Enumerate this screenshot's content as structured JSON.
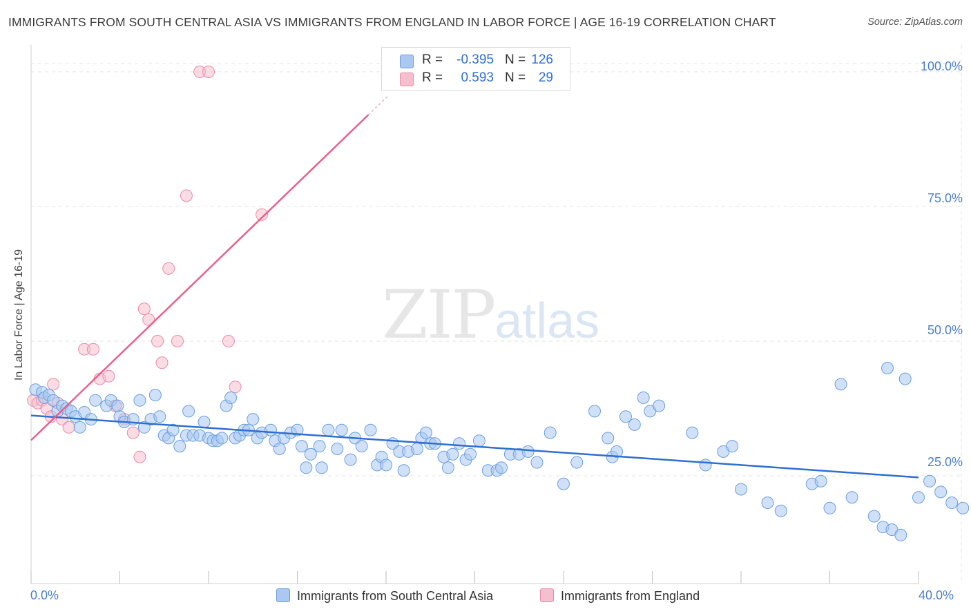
{
  "header": {
    "title": "IMMIGRANTS FROM SOUTH CENTRAL ASIA VS IMMIGRANTS FROM ENGLAND IN LABOR FORCE | AGE 16-19 CORRELATION CHART",
    "source": "Source: ZipAtlas.com"
  },
  "watermark": {
    "zip": "ZIP",
    "atlas": "atlas"
  },
  "legend": {
    "rows": [
      {
        "r_label": "R =",
        "r_value": "-0.395",
        "n_label": "N =",
        "n_value": "126"
      },
      {
        "r_label": "R =",
        "r_value": "0.593",
        "n_label": "N =",
        "n_value": "29"
      }
    ]
  },
  "colors": {
    "blue_fill": "#aac8f0",
    "blue_stroke": "#6a9ede",
    "blue_line": "#2f6fd0",
    "pink_fill": "#f6bfd0",
    "pink_stroke": "#e98aa6",
    "pink_line": "#e8608a",
    "grid": "#e3e3e3",
    "axis_text": "#4a7ec9"
  },
  "chart_data": {
    "type": "scatter",
    "title": "IMMIGRANTS FROM SOUTH CENTRAL ASIA VS IMMIGRANTS FROM ENGLAND IN LABOR FORCE | AGE 16-19 CORRELATION CHART",
    "xlabel": "",
    "ylabel": "In Labor Force | Age 16-19",
    "xlim": [
      0,
      40
    ],
    "ylim": [
      5,
      105
    ],
    "x_tick_labels": [
      "0.0%",
      "40.0%"
    ],
    "y_ticks": [
      25,
      50,
      75,
      100
    ],
    "y_tick_labels": [
      "25.0%",
      "50.0%",
      "75.0%",
      "100.0%"
    ],
    "grid": true,
    "legend_position": "top-center",
    "series": [
      {
        "name": "Immigrants from South Central Asia",
        "r": -0.395,
        "n": 126,
        "trend": {
          "x": [
            0,
            40
          ],
          "y": [
            36.2,
            24.7
          ]
        },
        "points": [
          [
            0.2,
            41.0
          ],
          [
            0.5,
            40.5
          ],
          [
            0.6,
            39.5
          ],
          [
            0.8,
            40.0
          ],
          [
            1.0,
            39.0
          ],
          [
            1.2,
            37.0
          ],
          [
            1.4,
            38.0
          ],
          [
            1.6,
            37.5
          ],
          [
            1.8,
            37.0
          ],
          [
            2.0,
            36.0
          ],
          [
            2.2,
            34.0
          ],
          [
            2.4,
            36.8
          ],
          [
            2.7,
            35.5
          ],
          [
            2.9,
            39.0
          ],
          [
            3.4,
            38.0
          ],
          [
            3.6,
            39.0
          ],
          [
            3.9,
            38.0
          ],
          [
            4.0,
            36.0
          ],
          [
            4.2,
            35.0
          ],
          [
            4.6,
            35.5
          ],
          [
            4.9,
            39.0
          ],
          [
            5.1,
            34.0
          ],
          [
            5.4,
            35.5
          ],
          [
            5.6,
            40.0
          ],
          [
            5.8,
            36.0
          ],
          [
            6.0,
            32.5
          ],
          [
            6.2,
            32.0
          ],
          [
            6.4,
            33.5
          ],
          [
            6.7,
            30.5
          ],
          [
            7.0,
            32.5
          ],
          [
            7.1,
            37.0
          ],
          [
            7.3,
            32.5
          ],
          [
            7.6,
            32.5
          ],
          [
            7.8,
            35.0
          ],
          [
            8.0,
            32.0
          ],
          [
            8.2,
            31.5
          ],
          [
            8.4,
            31.5
          ],
          [
            8.6,
            32.0
          ],
          [
            8.8,
            38.0
          ],
          [
            9.0,
            39.5
          ],
          [
            9.2,
            32.0
          ],
          [
            9.4,
            32.5
          ],
          [
            9.6,
            33.5
          ],
          [
            9.8,
            33.5
          ],
          [
            10.0,
            35.5
          ],
          [
            10.2,
            32.0
          ],
          [
            10.4,
            33.0
          ],
          [
            10.8,
            33.5
          ],
          [
            11.0,
            31.5
          ],
          [
            11.2,
            30.0
          ],
          [
            11.4,
            32.0
          ],
          [
            11.7,
            33.0
          ],
          [
            12.0,
            33.5
          ],
          [
            12.2,
            30.5
          ],
          [
            12.4,
            26.5
          ],
          [
            12.6,
            29.0
          ],
          [
            13.0,
            30.5
          ],
          [
            13.1,
            26.5
          ],
          [
            13.4,
            33.5
          ],
          [
            13.8,
            30.0
          ],
          [
            14.0,
            33.5
          ],
          [
            14.4,
            28.0
          ],
          [
            14.6,
            32.0
          ],
          [
            14.9,
            30.5
          ],
          [
            15.3,
            33.5
          ],
          [
            15.6,
            27.0
          ],
          [
            15.8,
            28.5
          ],
          [
            16.0,
            27.0
          ],
          [
            16.3,
            31.0
          ],
          [
            16.6,
            29.5
          ],
          [
            16.8,
            26.0
          ],
          [
            17.0,
            29.5
          ],
          [
            17.4,
            30.0
          ],
          [
            17.6,
            32.0
          ],
          [
            17.8,
            33.0
          ],
          [
            18.0,
            31.0
          ],
          [
            18.2,
            31.0
          ],
          [
            18.6,
            28.5
          ],
          [
            18.8,
            26.5
          ],
          [
            19.0,
            29.0
          ],
          [
            19.3,
            31.0
          ],
          [
            19.6,
            28.0
          ],
          [
            19.8,
            29.0
          ],
          [
            20.2,
            31.5
          ],
          [
            20.6,
            26.0
          ],
          [
            21.0,
            26.0
          ],
          [
            21.2,
            26.5
          ],
          [
            21.6,
            29.0
          ],
          [
            22.0,
            29.0
          ],
          [
            22.4,
            29.5
          ],
          [
            22.8,
            27.5
          ],
          [
            23.4,
            33.0
          ],
          [
            24.0,
            23.5
          ],
          [
            24.6,
            27.5
          ],
          [
            25.4,
            37.0
          ],
          [
            26.0,
            32.0
          ],
          [
            26.2,
            28.5
          ],
          [
            26.4,
            29.5
          ],
          [
            26.8,
            36.0
          ],
          [
            27.2,
            34.5
          ],
          [
            27.6,
            39.5
          ],
          [
            27.9,
            37.0
          ],
          [
            28.3,
            38.0
          ],
          [
            29.8,
            33.0
          ],
          [
            30.4,
            27.0
          ],
          [
            31.2,
            29.5
          ],
          [
            31.6,
            30.5
          ],
          [
            32.0,
            22.5
          ],
          [
            33.2,
            20.0
          ],
          [
            33.8,
            18.5
          ],
          [
            35.2,
            23.5
          ],
          [
            35.6,
            24.0
          ],
          [
            36.0,
            19.0
          ],
          [
            37.0,
            21.0
          ],
          [
            38.0,
            17.5
          ],
          [
            38.4,
            15.5
          ],
          [
            38.8,
            15.0
          ],
          [
            39.2,
            14.0
          ],
          [
            40.0,
            21.0
          ],
          [
            40.5,
            24.0
          ],
          [
            41.0,
            22.0
          ],
          [
            41.5,
            20.0
          ],
          [
            42.0,
            19.0
          ],
          [
            36.5,
            42.0
          ],
          [
            38.6,
            45.0
          ],
          [
            39.4,
            43.0
          ]
        ]
      },
      {
        "name": "Immigrants from England",
        "r": 0.593,
        "n": 29,
        "trend": {
          "x": [
            0,
            15.2
          ],
          "y": [
            31.6,
            92.0
          ]
        },
        "points": [
          [
            0.1,
            39.0
          ],
          [
            0.3,
            38.5
          ],
          [
            0.5,
            39.0
          ],
          [
            0.7,
            37.5
          ],
          [
            0.9,
            36.0
          ],
          [
            1.0,
            42.0
          ],
          [
            1.2,
            38.5
          ],
          [
            1.4,
            35.5
          ],
          [
            1.7,
            34.0
          ],
          [
            2.4,
            48.5
          ],
          [
            2.8,
            48.5
          ],
          [
            3.1,
            43.0
          ],
          [
            3.5,
            43.5
          ],
          [
            3.8,
            38.0
          ],
          [
            4.2,
            35.5
          ],
          [
            4.6,
            33.0
          ],
          [
            4.9,
            28.5
          ],
          [
            5.1,
            56.0
          ],
          [
            5.3,
            54.0
          ],
          [
            5.7,
            50.0
          ],
          [
            5.9,
            46.0
          ],
          [
            6.2,
            63.5
          ],
          [
            6.6,
            50.0
          ],
          [
            7.0,
            77.0
          ],
          [
            7.6,
            100.0
          ],
          [
            8.0,
            100.0
          ],
          [
            8.9,
            50.0
          ],
          [
            9.2,
            41.5
          ],
          [
            10.4,
            73.5
          ]
        ]
      }
    ]
  },
  "bottom_legend": {
    "items": [
      {
        "label": "Immigrants from South Central Asia"
      },
      {
        "label": "Immigrants from England"
      }
    ]
  }
}
